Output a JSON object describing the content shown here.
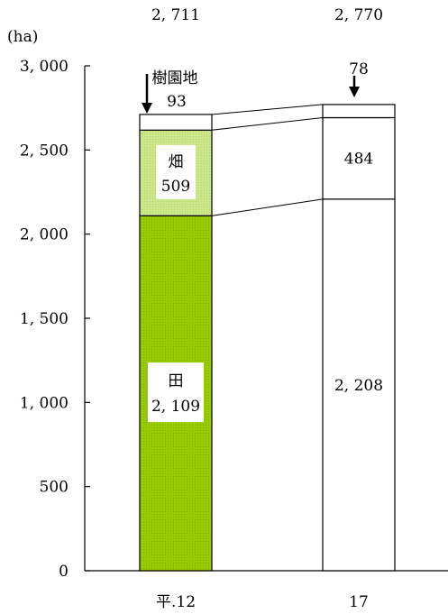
{
  "unit_label": "(ha)",
  "chart_data": {
    "type": "bar",
    "stacked": true,
    "ylim": [
      0,
      3000
    ],
    "y_ticks": [
      0,
      500,
      1000,
      1500,
      2000,
      2500,
      3000
    ],
    "y_tick_labels": [
      "0",
      "500",
      "1, 000",
      "1, 500",
      "2, 000",
      "2, 500",
      "3, 000"
    ],
    "categories": [
      "平.12",
      "17"
    ],
    "totals": [
      2711,
      2770
    ],
    "total_labels": [
      "2, 711",
      "2, 770"
    ],
    "series": [
      {
        "name": "田",
        "values": [
          2109,
          2208
        ],
        "value_labels": [
          "2, 109",
          "2, 208"
        ],
        "colors": [
          "#99cc00",
          "#ffffff"
        ]
      },
      {
        "name": "畑",
        "values": [
          509,
          484
        ],
        "value_labels": [
          "509",
          "484"
        ],
        "colors": [
          "#cce68a",
          "#ffffff"
        ]
      },
      {
        "name": "樹園地",
        "values": [
          93,
          78
        ],
        "value_labels": [
          "93",
          "78"
        ],
        "colors": [
          "#ffffff",
          "#ffffff"
        ]
      }
    ]
  }
}
